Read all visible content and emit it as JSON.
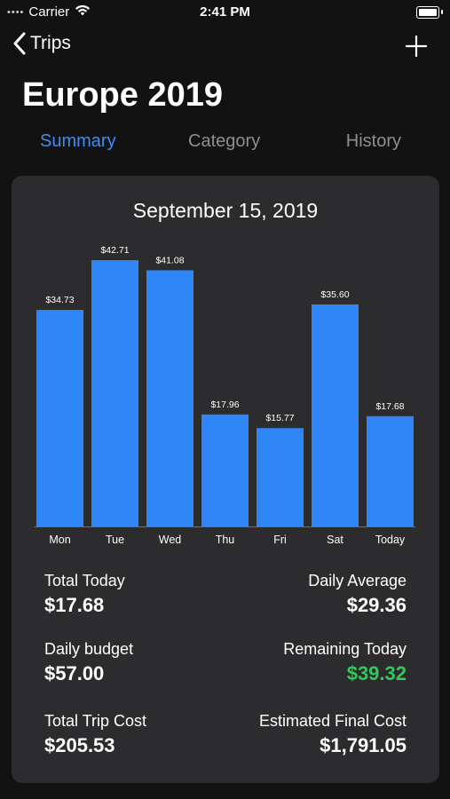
{
  "status_bar": {
    "carrier": "Carrier",
    "time": "2:41 PM"
  },
  "nav": {
    "back_label": "Trips"
  },
  "title": "Europe 2019",
  "tabs": [
    {
      "label": "Summary",
      "active": true
    },
    {
      "label": "Category",
      "active": false
    },
    {
      "label": "History",
      "active": false
    }
  ],
  "card": {
    "date": "September 15, 2019",
    "stats": {
      "total_today": {
        "label": "Total Today",
        "value": "$17.68"
      },
      "daily_average": {
        "label": "Daily Average",
        "value": "$29.36"
      },
      "daily_budget": {
        "label": "Daily budget",
        "value": "$57.00"
      },
      "remaining_today": {
        "label": "Remaining Today",
        "value": "$39.32"
      },
      "total_trip_cost": {
        "label": "Total Trip Cost",
        "value": "$205.53"
      },
      "estimated_final_cost": {
        "label": "Estimated Final Cost",
        "value": "$1,791.05"
      }
    }
  },
  "colors": {
    "accent": "#3d8ef5",
    "bar": "#2f86f6",
    "positive": "#34c759",
    "card": "#2c2c2e",
    "background": "#121212"
  },
  "chart_data": {
    "type": "bar",
    "categories": [
      "Mon",
      "Tue",
      "Wed",
      "Thu",
      "Fri",
      "Sat",
      "Today"
    ],
    "values": [
      34.73,
      42.71,
      41.08,
      17.96,
      15.77,
      35.6,
      17.68
    ],
    "data_labels": [
      "$34.73",
      "$42.71",
      "$41.08",
      "$17.96",
      "$15.77",
      "$35.60",
      "$17.68"
    ],
    "ylim": [
      0,
      42.71
    ],
    "grid": false
  }
}
